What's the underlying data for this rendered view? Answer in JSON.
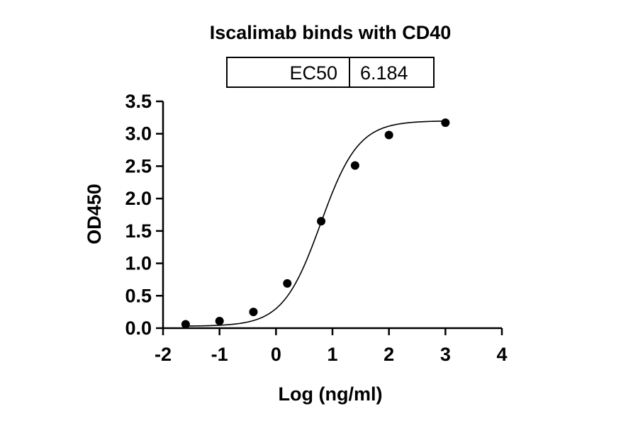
{
  "chart_data": {
    "type": "scatter",
    "title": "Iscalimab binds with CD40",
    "xlabel": "Log (ng/ml)",
    "ylabel": "OD450",
    "xlim": [
      -2,
      4
    ],
    "ylim": [
      0,
      3.5
    ],
    "x_ticks": [
      "-2",
      "-1",
      "0",
      "1",
      "2",
      "3",
      "4"
    ],
    "y_ticks": [
      "0.0",
      "0.5",
      "1.0",
      "1.5",
      "2.0",
      "2.5",
      "3.0",
      "3.5"
    ],
    "series": [
      {
        "points": [
          {
            "x": -1.6,
            "y": 0.06
          },
          {
            "x": -1.0,
            "y": 0.11
          },
          {
            "x": -0.4,
            "y": 0.25
          },
          {
            "x": 0.2,
            "y": 0.69
          },
          {
            "x": 0.8,
            "y": 1.65
          },
          {
            "x": 1.4,
            "y": 2.51
          },
          {
            "x": 2.0,
            "y": 2.98
          },
          {
            "x": 3.0,
            "y": 3.17
          }
        ]
      }
    ],
    "fit": {
      "bottom": 0.03,
      "top": 3.2,
      "log_ec50": 0.791,
      "hill": 1.3
    },
    "results_table": {
      "label": "EC50",
      "value": "6.184"
    }
  }
}
